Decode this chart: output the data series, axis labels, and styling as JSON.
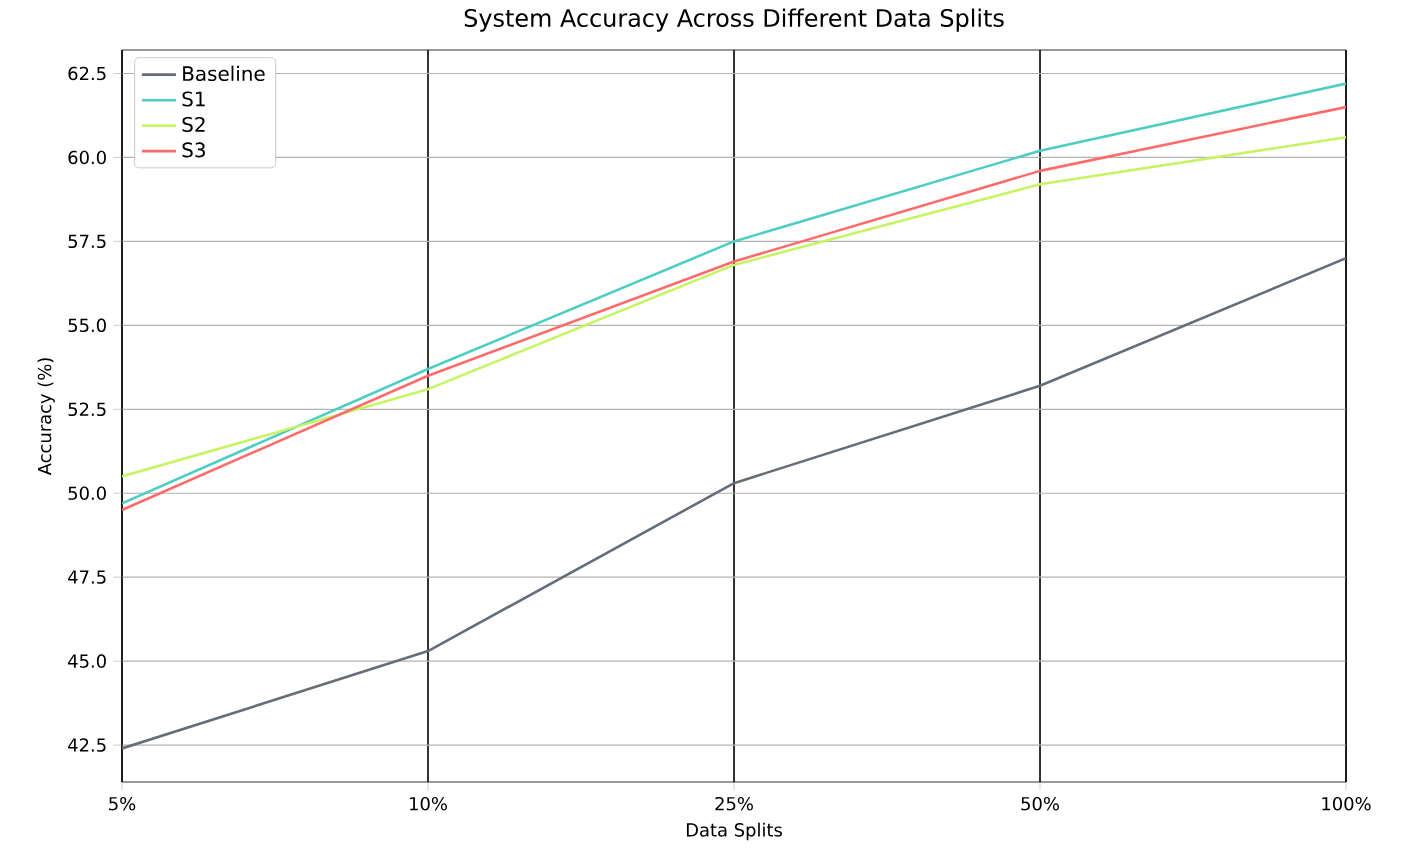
{
  "chart_data": {
    "type": "line",
    "title": "System Accuracy Across Different Data Splits",
    "xlabel": "Data Splits",
    "ylabel": "Accuracy (%)",
    "categories": [
      "5%",
      "10%",
      "25%",
      "50%",
      "100%"
    ],
    "series": [
      {
        "name": "Baseline",
        "color": "#636e7b",
        "values": [
          42.4,
          45.3,
          50.3,
          53.2,
          57.0
        ]
      },
      {
        "name": "S1",
        "color": "#4ecdc4",
        "values": [
          49.7,
          53.7,
          57.5,
          60.2,
          62.2
        ]
      },
      {
        "name": "S2",
        "color": "#c7f464",
        "values": [
          50.5,
          53.1,
          56.8,
          59.2,
          60.6
        ]
      },
      {
        "name": "S3",
        "color": "#ff6b6b",
        "values": [
          49.5,
          53.5,
          56.9,
          59.6,
          61.5
        ]
      }
    ],
    "ylim": [
      41.4,
      63.2
    ],
    "yticks": [
      {
        "value": 42.5,
        "label": "42.5"
      },
      {
        "value": 45,
        "label": "45.0"
      },
      {
        "value": 47.5,
        "label": "47.5"
      },
      {
        "value": 50,
        "label": "50.0"
      },
      {
        "value": 52.5,
        "label": "52.5"
      },
      {
        "value": 55,
        "label": "55.0"
      },
      {
        "value": 57.5,
        "label": "57.5"
      },
      {
        "value": 60,
        "label": "60.0"
      },
      {
        "value": 62.5,
        "label": "62.5"
      }
    ],
    "grid": true,
    "legend": "top left",
    "marker": "none",
    "line_style": "solid"
  }
}
